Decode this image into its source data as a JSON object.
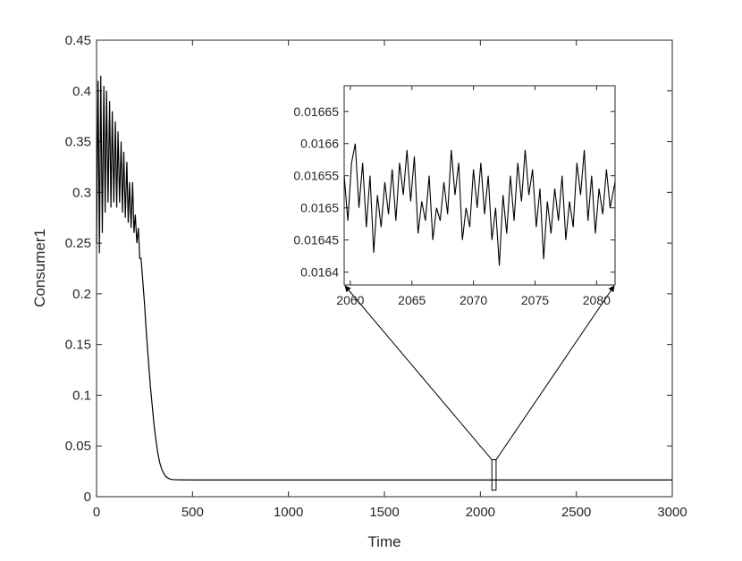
{
  "chart_data": [
    {
      "type": "line",
      "title": "",
      "xlabel": "Time",
      "ylabel": "Consumer1",
      "xlim": [
        0,
        3000
      ],
      "ylim": [
        0,
        0.45
      ],
      "xticks": [
        0,
        500,
        1000,
        1500,
        2000,
        2500,
        3000
      ],
      "xtick_labels": [
        "0",
        "500",
        "1000",
        "1500",
        "2000",
        "2500",
        "3000"
      ],
      "yticks": [
        0,
        0.05,
        0.1,
        0.15,
        0.2,
        0.25,
        0.3,
        0.35,
        0.4,
        0.45
      ],
      "ytick_labels": [
        "0",
        "0.05",
        "0.1",
        "0.15",
        "0.2",
        "0.25",
        "0.3",
        "0.35",
        "0.4",
        "0.45"
      ],
      "grid": false,
      "line_color": "#000000",
      "series": [
        {
          "x": [
            0,
            8,
            15,
            22,
            30,
            38,
            45,
            52,
            60,
            68,
            75,
            82,
            90,
            98,
            105,
            112,
            120,
            128,
            135,
            142,
            150,
            158,
            165,
            172,
            180,
            188,
            195,
            202,
            210,
            218,
            225,
            232,
            240,
            250,
            260,
            270,
            280,
            290,
            300,
            310,
            320,
            330,
            340,
            350,
            360,
            375,
            390,
            410,
            440,
            480,
            520,
            600,
            800,
            1000,
            1500,
            2000,
            2500,
            3000
          ],
          "y": [
            0.25,
            0.41,
            0.24,
            0.415,
            0.26,
            0.405,
            0.28,
            0.4,
            0.29,
            0.39,
            0.285,
            0.38,
            0.29,
            0.37,
            0.285,
            0.36,
            0.29,
            0.35,
            0.28,
            0.34,
            0.275,
            0.33,
            0.27,
            0.31,
            0.265,
            0.31,
            0.26,
            0.278,
            0.25,
            0.265,
            0.235,
            0.235,
            0.215,
            0.19,
            0.16,
            0.135,
            0.11,
            0.09,
            0.07,
            0.055,
            0.042,
            0.033,
            0.027,
            0.023,
            0.02,
            0.018,
            0.017,
            0.0167,
            0.0166,
            0.0165,
            0.0165,
            0.0165,
            0.0165,
            0.0165,
            0.0165,
            0.0165,
            0.0165,
            0.0165
          ]
        }
      ],
      "zoom_box": {
        "x": [
          2060,
          2082
        ],
        "y": [
          0.0064,
          0.0364
        ]
      },
      "annotations": [
        "arrow from zoom box to inset (left)",
        "arrow from zoom box to inset (right)"
      ]
    },
    {
      "type": "line",
      "title": "",
      "xlabel": "",
      "ylabel": "",
      "role": "inset",
      "xlim": [
        2059.5,
        2081.5
      ],
      "ylim": [
        0.01638,
        0.01669
      ],
      "xticks": [
        2060,
        2065,
        2070,
        2075,
        2080
      ],
      "xtick_labels": [
        "2060",
        "2065",
        "2070",
        "2075",
        "2080"
      ],
      "yticks": [
        0.0164,
        0.01645,
        0.0165,
        0.01655,
        0.0166,
        0.01665
      ],
      "ytick_labels": [
        "0.0164",
        "0.01645",
        "0.0165",
        "0.01655",
        "0.0166",
        "0.01665"
      ],
      "series": [
        {
          "x": [
            2059.5,
            2059.8,
            2060.1,
            2060.4,
            2060.7,
            2061.0,
            2061.3,
            2061.6,
            2061.9,
            2062.2,
            2062.5,
            2062.8,
            2063.1,
            2063.4,
            2063.7,
            2064.0,
            2064.3,
            2064.6,
            2064.9,
            2065.2,
            2065.5,
            2065.8,
            2066.1,
            2066.4,
            2066.7,
            2067.0,
            2067.3,
            2067.6,
            2067.9,
            2068.2,
            2068.5,
            2068.8,
            2069.1,
            2069.4,
            2069.7,
            2070.0,
            2070.3,
            2070.6,
            2070.9,
            2071.2,
            2071.5,
            2071.8,
            2072.1,
            2072.4,
            2072.7,
            2073.0,
            2073.3,
            2073.6,
            2073.9,
            2074.2,
            2074.5,
            2074.8,
            2075.1,
            2075.4,
            2075.7,
            2076.0,
            2076.3,
            2076.6,
            2076.9,
            2077.2,
            2077.5,
            2077.8,
            2078.1,
            2078.4,
            2078.7,
            2079.0,
            2079.3,
            2079.6,
            2079.9,
            2080.2,
            2080.5,
            2080.8,
            2081.1,
            2081.5
          ],
          "y": [
            0.01655,
            0.01648,
            0.01657,
            0.0166,
            0.0165,
            0.01657,
            0.01647,
            0.01655,
            0.01643,
            0.01652,
            0.01647,
            0.01654,
            0.01649,
            0.01656,
            0.01648,
            0.01657,
            0.01652,
            0.01659,
            0.01651,
            0.01658,
            0.01646,
            0.01651,
            0.01648,
            0.01655,
            0.01645,
            0.0165,
            0.01648,
            0.01654,
            0.01649,
            0.01659,
            0.01652,
            0.01657,
            0.01645,
            0.0165,
            0.01647,
            0.01656,
            0.0165,
            0.01657,
            0.01649,
            0.01655,
            0.01645,
            0.0165,
            0.01641,
            0.01652,
            0.01646,
            0.01655,
            0.01648,
            0.01657,
            0.01651,
            0.01659,
            0.01652,
            0.01656,
            0.01647,
            0.01653,
            0.01642,
            0.01651,
            0.01646,
            0.01653,
            0.01648,
            0.01655,
            0.01645,
            0.01651,
            0.01647,
            0.01657,
            0.01652,
            0.01659,
            0.01648,
            0.01655,
            0.01646,
            0.01653,
            0.01649,
            0.01656,
            0.0165,
            0.01654
          ]
        }
      ]
    }
  ]
}
